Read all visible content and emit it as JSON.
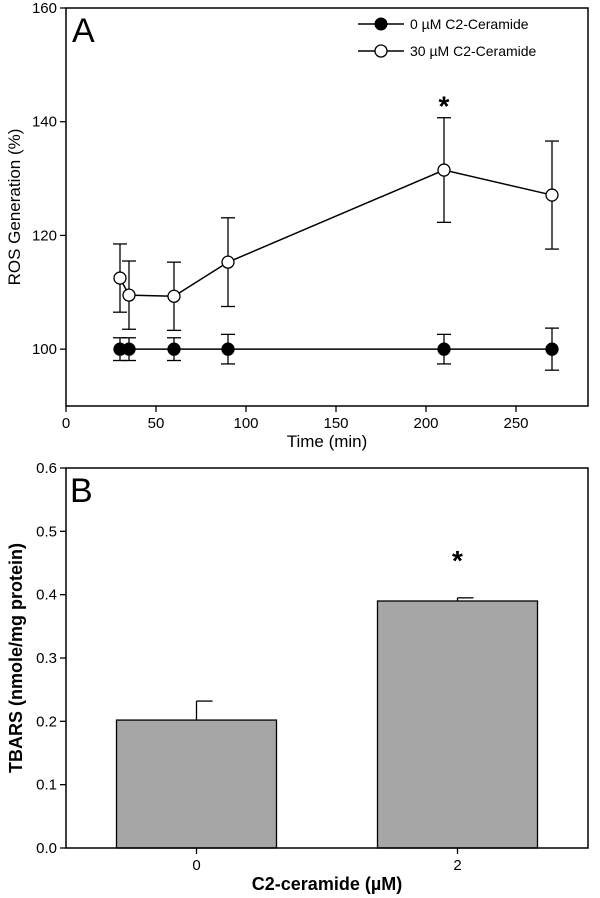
{
  "chart_data": [
    {
      "panel": "A",
      "type": "line",
      "xlabel": "Time (min)",
      "ylabel": "ROS Generation (%)",
      "xlim": [
        0,
        290
      ],
      "ylim": [
        90,
        160
      ],
      "xticks": [
        0,
        50,
        100,
        150,
        200,
        250
      ],
      "yticks": [
        100,
        120,
        140,
        160
      ],
      "legend_position": "top-right",
      "series": [
        {
          "name": "0 µM C2-Ceramide",
          "marker": "filled-circle",
          "x": [
            30,
            35,
            60,
            90,
            210,
            270
          ],
          "y": [
            100,
            100,
            100,
            100,
            100,
            100
          ],
          "err": [
            2,
            2,
            2,
            2.6,
            2.6,
            3.7
          ]
        },
        {
          "name": "30 µM C2-Ceramide",
          "marker": "open-circle",
          "x": [
            30,
            35,
            60,
            90,
            210,
            270
          ],
          "y": [
            112.5,
            109.5,
            109.3,
            115.3,
            131.5,
            127.1
          ],
          "err": [
            6,
            6,
            6,
            7.8,
            9.2,
            9.5
          ]
        }
      ],
      "annotations": [
        {
          "text": "*",
          "x": 210
        }
      ]
    },
    {
      "panel": "B",
      "type": "bar",
      "xlabel": "C2-ceramide (µM)",
      "ylabel": "TBARS (nmole/mg protein)",
      "categories": [
        "0",
        "2"
      ],
      "values": [
        0.202,
        0.39
      ],
      "err": [
        0.03,
        0.005
      ],
      "ylim": [
        0.0,
        0.6
      ],
      "yticks": [
        "0.0",
        "0.1",
        "0.2",
        "0.3",
        "0.4",
        "0.5",
        "0.6"
      ],
      "bar_color": "#a6a6a6",
      "annotations": [
        {
          "text": "*",
          "category": "2"
        }
      ]
    }
  ]
}
